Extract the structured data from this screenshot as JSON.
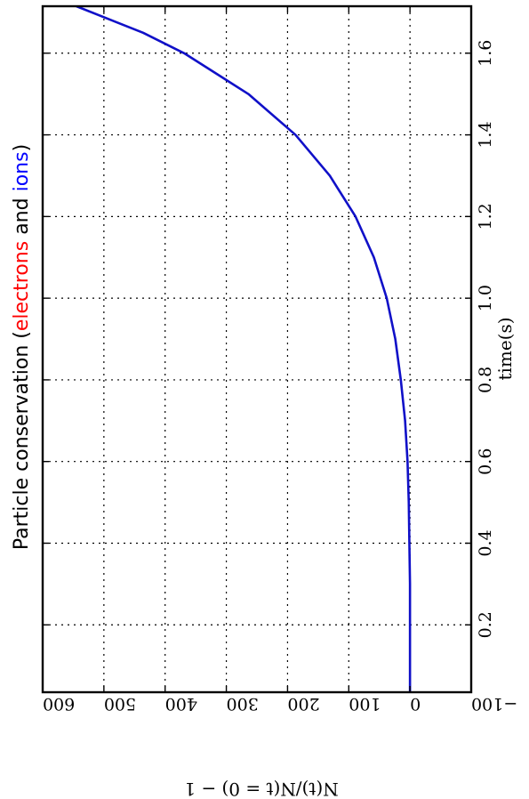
{
  "chart_data": {
    "type": "line",
    "orientation": "rotated-90-clockwise",
    "title": {
      "prefix": "Particle conservation (",
      "parts": [
        {
          "text": "electrons",
          "color": "#ff0000"
        },
        {
          "text": " and ",
          "color": "#000000"
        },
        {
          "text": "ions",
          "color": "#0000ff"
        }
      ],
      "suffix": ")"
    },
    "xlabel": "time(s)",
    "ylabel": "N(t)/N(t = 0) − 1",
    "xlim": [
      0.035,
      1.715
    ],
    "ylim": [
      -100,
      600
    ],
    "xticks": [
      0.2,
      0.4,
      0.6,
      0.8,
      1.0,
      1.2,
      1.4,
      1.6
    ],
    "xtick_labels": [
      "0.2",
      "0.4",
      "0.6",
      "0.8",
      "1.0",
      "1.2",
      "1.4",
      "1.6"
    ],
    "yticks": [
      -100,
      0,
      100,
      200,
      300,
      400,
      500,
      600
    ],
    "ytick_labels": [
      "−100",
      "0",
      "100",
      "200",
      "300",
      "400",
      "500",
      "600"
    ],
    "grid": true,
    "series": [
      {
        "color": "#1010c8",
        "x": [
          0.035,
          0.1,
          0.2,
          0.3,
          0.4,
          0.5,
          0.6,
          0.7,
          0.8,
          0.9,
          1.0,
          1.1,
          1.2,
          1.3,
          1.4,
          1.5,
          1.6,
          1.65,
          1.715
        ],
        "y": [
          0,
          0,
          0,
          0,
          1,
          2,
          4,
          8,
          15,
          24,
          38,
          59,
          89,
          131,
          187,
          264,
          369,
          436,
          545
        ]
      }
    ]
  }
}
